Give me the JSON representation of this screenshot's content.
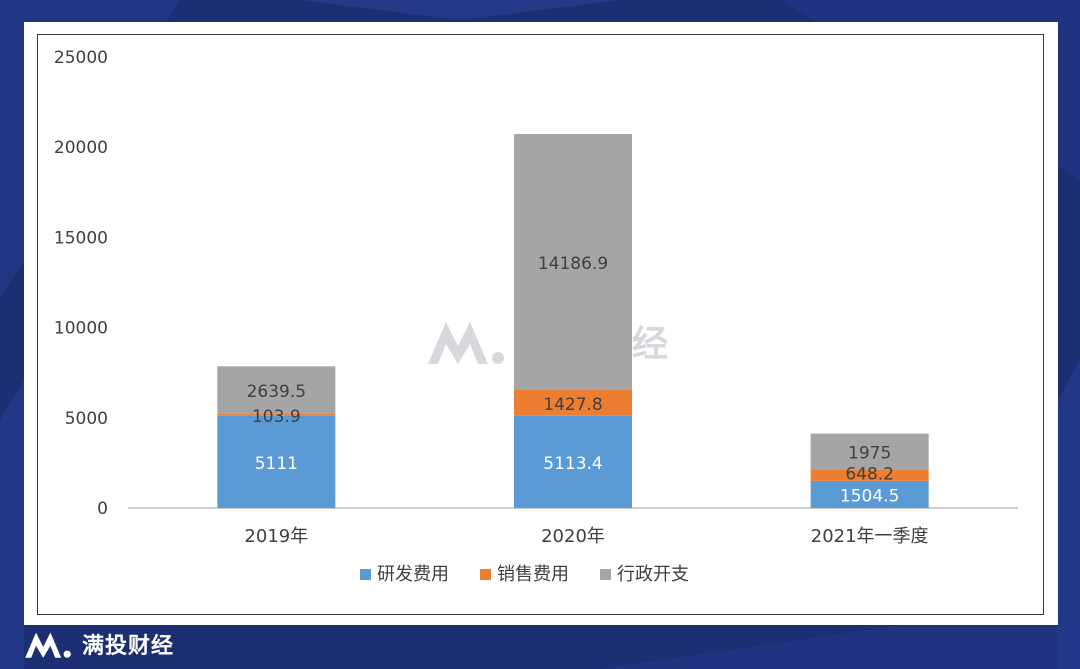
{
  "brand": {
    "name": "满投财经",
    "watermark_text": "满投财经"
  },
  "colors": {
    "background": "#1c2f72",
    "panel": "#ffffff",
    "rd": "#5b9bd5",
    "sales": "#ed7d31",
    "admin": "#a5a5a5"
  },
  "chart_data": {
    "type": "bar",
    "stacked": true,
    "categories": [
      "2019年",
      "2020年",
      "2021年一季度"
    ],
    "series": [
      {
        "name": "研发费用",
        "color": "#5b9bd5",
        "values": [
          5111,
          5113.4,
          1504.5
        ],
        "labels": [
          "5111",
          "5113.4",
          "1504.5"
        ]
      },
      {
        "name": "销售费用",
        "color": "#ed7d31",
        "values": [
          103.9,
          1427.8,
          648.2
        ],
        "labels": [
          "103.9",
          "1427.8",
          "648.2"
        ]
      },
      {
        "name": "行政开支",
        "color": "#a5a5a5",
        "values": [
          2639.5,
          14186.9,
          1975
        ],
        "labels": [
          "2639.5",
          "14186.9",
          "1975"
        ]
      }
    ],
    "y_ticks": [
      "0",
      "5000",
      "10000",
      "15000",
      "20000",
      "25000"
    ],
    "ylim": [
      0,
      25000
    ],
    "grid": false,
    "legend_position": "bottom"
  }
}
